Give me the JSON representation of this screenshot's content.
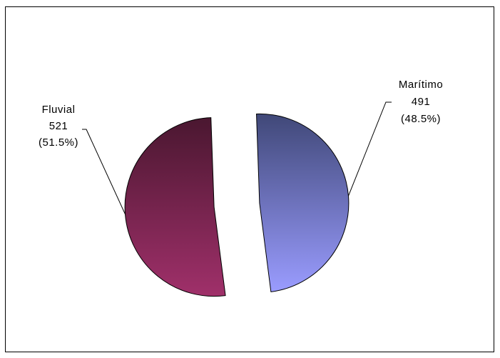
{
  "chart_data": {
    "type": "pie",
    "title": "",
    "slices": [
      {
        "label": "Marítimo",
        "value": 491,
        "percent": "(48.5%)",
        "value_label": "491"
      },
      {
        "label": "Fluvial",
        "value": 521,
        "percent": "(51.5%)",
        "value_label": "521"
      }
    ],
    "legend": "none",
    "exploded": true,
    "colors": {
      "maritimo_top": "#404878",
      "maritimo_bottom": "#9a9cff",
      "fluvial_top": "#4a1730",
      "fluvial_bottom": "#a0306a"
    }
  }
}
